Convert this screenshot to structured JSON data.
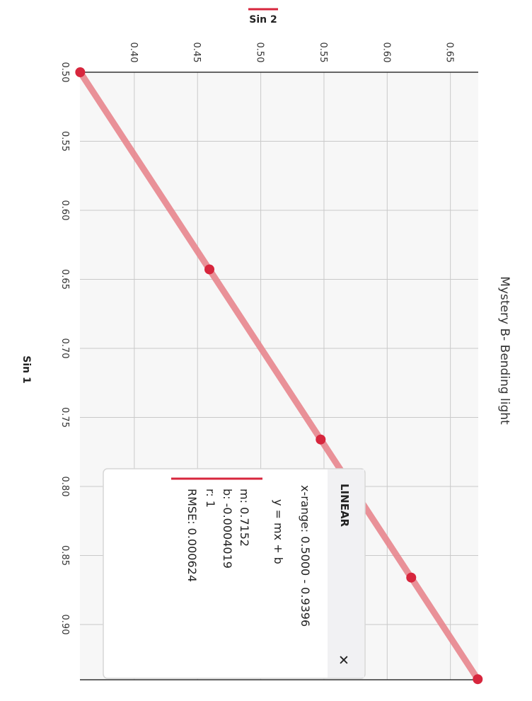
{
  "chart_data": {
    "type": "scatter",
    "title": "Mystery B- Bending light",
    "xlabel": "Sin 1",
    "ylabel": "Sin 2",
    "legend_entry": "Sin 2",
    "x_ticks": [
      "0.50",
      "0.55",
      "0.60",
      "0.65",
      "0.70",
      "0.75",
      "0.80",
      "0.85",
      "0.90"
    ],
    "y_ticks": [
      "0.40",
      "0.45",
      "0.50",
      "0.55",
      "0.60",
      "0.65"
    ],
    "xlim": [
      0.5,
      0.94
    ],
    "ylim": [
      0.357,
      0.672
    ],
    "grid": true,
    "series": [
      {
        "name": "Sin 2",
        "color": "#d7263d",
        "x": [
          0.5,
          0.6428,
          0.766,
          0.866,
          0.9396
        ],
        "y": [
          0.3572,
          0.4594,
          0.5474,
          0.619,
          0.6716
        ]
      }
    ],
    "fit": {
      "type": "linear",
      "color": "#e8868e",
      "m": 0.7152,
      "b": -0.0004019,
      "x_range": [
        0.5,
        0.9396
      ]
    }
  },
  "fit_panel": {
    "header": "LINEAR",
    "close_label": "✕",
    "x_range": "x-range: 0.5000 - 0.9396",
    "equation": "y = mx + b",
    "m": "m: 0.7152",
    "b": "b: -0.0004019",
    "r": "r: 1",
    "rmse": "RMSE: 0.000624",
    "accent": "#d7263d"
  }
}
